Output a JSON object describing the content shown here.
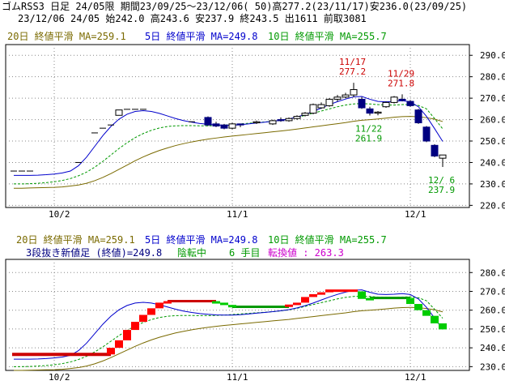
{
  "header": {
    "line1": "ゴムRSS3 日足 24/05限 期間23/09/25〜23/12/06( 50)高277.2(23/11/17)安236.0(23/09/25)",
    "line2": "23/12/06 24/05 始242.0 高243.6 安237.9 終243.5 出1611 前取3081"
  },
  "top_legend": [
    {
      "text": "20日 終値平滑 MA=259.1",
      "color": "#7a6a00"
    },
    {
      "text": "5日 終値平滑 MA=249.8",
      "color": "#0000cc"
    },
    {
      "text": "10日 終値平滑 MA=255.7",
      "color": "#009900"
    }
  ],
  "bottom_legend": [
    {
      "text": "20日 終値平滑 MA=259.1",
      "color": "#7a6a00"
    },
    {
      "text": "5日 終値平滑 MA=249.8",
      "color": "#0000cc"
    },
    {
      "text": "10日 終値平滑 MA=255.7",
      "color": "#009900"
    }
  ],
  "bottom_info": [
    {
      "text": "3段抜き新値足 (終値)=249.8",
      "color": "#000080"
    },
    {
      "text": "陰転中",
      "color": "#009900"
    },
    {
      "text": "6 手目",
      "color": "#009900"
    },
    {
      "text": "転換値 : 263.3",
      "color": "#cc00cc"
    }
  ],
  "chart_data": [
    {
      "type": "candlestick",
      "yticks": [
        220,
        230,
        240,
        250,
        260,
        270,
        280,
        290
      ],
      "ylim": [
        219,
        295
      ],
      "xticks": [
        {
          "label": "10/2",
          "index": 5
        },
        {
          "label": "11/1",
          "index": 27
        },
        {
          "label": "12/1",
          "index": 49
        }
      ],
      "candles": [
        {
          "i": 0,
          "o": 236.0,
          "h": 236.0,
          "l": 236.0,
          "c": 236.0
        },
        {
          "i": 1,
          "o": 236.0,
          "h": 236.0,
          "l": 236.0,
          "c": 236.0
        },
        {
          "i": 2,
          "o": 236.0,
          "h": 236.0,
          "l": 236.0,
          "c": 236.0
        },
        {
          "i": 8,
          "o": 240.0,
          "h": 240.0,
          "l": 240.0,
          "c": 240.0
        },
        {
          "i": 10,
          "o": 253.8,
          "h": 253.8,
          "l": 253.8,
          "c": 253.8
        },
        {
          "i": 11,
          "o": 256.0,
          "h": 256.0,
          "l": 256.0,
          "c": 256.0
        },
        {
          "i": 12,
          "o": 257.5,
          "h": 257.5,
          "l": 257.5,
          "c": 257.5
        },
        {
          "i": 13,
          "o": 262.0,
          "h": 264.5,
          "l": 262.0,
          "c": 264.5
        },
        {
          "i": 14,
          "o": 264.8,
          "h": 264.8,
          "l": 264.8,
          "c": 264.8
        },
        {
          "i": 15,
          "o": 264.8,
          "h": 264.8,
          "l": 264.8,
          "c": 264.8
        },
        {
          "i": 16,
          "o": 264.8,
          "h": 264.8,
          "l": 264.8,
          "c": 264.8
        },
        {
          "i": 22,
          "o": 259.0,
          "h": 259.0,
          "l": 259.0,
          "c": 259.0
        },
        {
          "i": 24,
          "o": 261.0,
          "h": 261.5,
          "l": 257.0,
          "c": 257.5
        },
        {
          "i": 25,
          "o": 258.0,
          "h": 259.0,
          "l": 256.5,
          "c": 257.0
        },
        {
          "i": 26,
          "o": 257.5,
          "h": 258.0,
          "l": 255.5,
          "c": 256.0
        },
        {
          "i": 27,
          "o": 256.0,
          "h": 258.5,
          "l": 255.5,
          "c": 258.0
        },
        {
          "i": 28,
          "o": 258.0,
          "h": 258.0,
          "l": 256.5,
          "c": 257.5
        },
        {
          "i": 30,
          "o": 258.5,
          "h": 259.5,
          "l": 258.0,
          "c": 259.0
        },
        {
          "i": 32,
          "o": 258.0,
          "h": 260.0,
          "l": 257.5,
          "c": 259.5
        },
        {
          "i": 33,
          "o": 260.0,
          "h": 261.0,
          "l": 259.0,
          "c": 259.5
        },
        {
          "i": 34,
          "o": 259.5,
          "h": 261.0,
          "l": 259.0,
          "c": 260.5
        },
        {
          "i": 35,
          "o": 260.5,
          "h": 262.0,
          "l": 260.0,
          "c": 261.5
        },
        {
          "i": 36,
          "o": 262.0,
          "h": 263.5,
          "l": 261.5,
          "c": 263.0
        },
        {
          "i": 37,
          "o": 263.0,
          "h": 267.5,
          "l": 262.5,
          "c": 267.0
        },
        {
          "i": 38,
          "o": 265.5,
          "h": 268.0,
          "l": 265.0,
          "c": 267.0
        },
        {
          "i": 39,
          "o": 266.5,
          "h": 270.0,
          "l": 266.0,
          "c": 269.5
        },
        {
          "i": 40,
          "o": 269.5,
          "h": 271.5,
          "l": 268.5,
          "c": 270.5
        },
        {
          "i": 41,
          "o": 270.5,
          "h": 272.5,
          "l": 270.0,
          "c": 271.5
        },
        {
          "i": 42,
          "o": 271.5,
          "h": 277.2,
          "l": 270.5,
          "c": 274.0
        },
        {
          "i": 43,
          "o": 269.5,
          "h": 270.5,
          "l": 265.0,
          "c": 265.5
        },
        {
          "i": 44,
          "o": 265.0,
          "h": 266.0,
          "l": 261.9,
          "c": 263.0
        },
        {
          "i": 45,
          "o": 263.0,
          "h": 264.0,
          "l": 262.0,
          "c": 263.5
        },
        {
          "i": 46,
          "o": 266.0,
          "h": 268.5,
          "l": 265.5,
          "c": 268.0
        },
        {
          "i": 47,
          "o": 268.0,
          "h": 271.0,
          "l": 267.5,
          "c": 270.5
        },
        {
          "i": 48,
          "o": 269.5,
          "h": 271.8,
          "l": 268.5,
          "c": 269.0
        },
        {
          "i": 49,
          "o": 268.5,
          "h": 269.0,
          "l": 266.0,
          "c": 266.5
        },
        {
          "i": 50,
          "o": 264.5,
          "h": 265.0,
          "l": 258.0,
          "c": 258.5
        },
        {
          "i": 51,
          "o": 256.5,
          "h": 257.0,
          "l": 249.5,
          "c": 250.0
        },
        {
          "i": 52,
          "o": 248.0,
          "h": 248.5,
          "l": 242.5,
          "c": 243.0
        },
        {
          "i": 53,
          "o": 242.0,
          "h": 243.6,
          "l": 237.9,
          "c": 243.5
        }
      ],
      "ma20": [
        228,
        228,
        228.1,
        228.2,
        228.3,
        228.4,
        228.6,
        229,
        229.5,
        230.3,
        231.5,
        233,
        234.8,
        236.8,
        238.8,
        240.8,
        242.6,
        244.2,
        245.6,
        246.8,
        247.9,
        248.8,
        249.6,
        250.3,
        250.9,
        251.4,
        251.9,
        252.3,
        252.7,
        253.1,
        253.5,
        253.9,
        254.3,
        254.7,
        255.1,
        255.6,
        256.1,
        256.6,
        257.1,
        257.6,
        258.1,
        258.6,
        259.2,
        259.7,
        260,
        260.3,
        260.7,
        261.1,
        261.4,
        261.5,
        261.3,
        260.9,
        260.2,
        259.1
      ],
      "ma10": [
        230,
        230,
        230.1,
        230.3,
        230.6,
        231,
        231.6,
        232.5,
        233.8,
        235.5,
        237.8,
        240.5,
        243.5,
        246.5,
        249.2,
        251.6,
        253.5,
        255,
        256.1,
        256.8,
        257.1,
        257.2,
        257.2,
        257.1,
        257.1,
        257.2,
        257.4,
        257.7,
        258,
        258.3,
        258.6,
        258.9,
        259.2,
        259.6,
        260.2,
        261,
        262,
        263,
        264,
        265,
        266,
        266.8,
        267.3,
        267.5,
        267.3,
        267,
        266.8,
        266.8,
        267,
        267.1,
        266.6,
        265,
        260.5,
        255.7
      ],
      "ma5": [
        234,
        234,
        234,
        234.1,
        234.3,
        234.6,
        235.1,
        236,
        238.5,
        242.5,
        247.5,
        252.5,
        256.8,
        260.2,
        262.5,
        263.8,
        264.2,
        263.8,
        262.9,
        261.7,
        260.5,
        259.5,
        258.8,
        258.2,
        257.8,
        257.5,
        257.4,
        257.4,
        257.6,
        258,
        258.4,
        258.8,
        259.2,
        259.7,
        260.3,
        261.2,
        262.4,
        263.8,
        265.4,
        267,
        268.4,
        269.6,
        270.6,
        270.8,
        269.5,
        268.5,
        268.3,
        268.5,
        268.8,
        268.3,
        266,
        261.5,
        255.8,
        249.8
      ],
      "annotations": [
        {
          "i": 42,
          "text_date": "11/17",
          "text_value": "277.2",
          "color": "#cc0000",
          "position": "above"
        },
        {
          "i": 48,
          "text_date": "11/29",
          "text_value": "271.8",
          "color": "#cc0000",
          "position": "above"
        },
        {
          "i": 44,
          "text_date": "11/22",
          "text_value": "261.9",
          "color": "#009900",
          "position": "below"
        },
        {
          "i": 53,
          "text_date": "12/ 6",
          "text_value": "237.9",
          "color": "#009900",
          "position": "below"
        }
      ]
    },
    {
      "type": "three-line-break",
      "basis": "終値",
      "yticks": [
        230,
        240,
        250,
        260,
        270,
        280
      ],
      "ylim": [
        228,
        287
      ],
      "xticks": [
        {
          "label": "10/2",
          "index": 5
        },
        {
          "label": "11/1",
          "index": 27
        },
        {
          "label": "12/1",
          "index": 49
        }
      ],
      "base_line": {
        "from_i": 0,
        "to_i": 12,
        "value": 236.5,
        "color": "#cc0000"
      },
      "bricks": [
        {
          "i": 12,
          "lo": 236.5,
          "hi": 240.0,
          "dir": "up"
        },
        {
          "i": 13,
          "lo": 240.0,
          "hi": 244.0,
          "dir": "up"
        },
        {
          "i": 14,
          "lo": 244.0,
          "hi": 249.5,
          "dir": "up"
        },
        {
          "i": 15,
          "lo": 249.5,
          "hi": 253.8,
          "dir": "up"
        },
        {
          "i": 16,
          "lo": 253.8,
          "hi": 257.5,
          "dir": "up"
        },
        {
          "i": 17,
          "lo": 257.5,
          "hi": 261.0,
          "dir": "up"
        },
        {
          "i": 18,
          "lo": 261.0,
          "hi": 264.0,
          "dir": "up"
        },
        {
          "i": 19,
          "lo": 264.0,
          "hi": 264.8,
          "dir": "up"
        },
        {
          "i": 25,
          "lo": 264.0,
          "hi": 264.8,
          "dir": "down"
        },
        {
          "i": 26,
          "lo": 262.8,
          "hi": 264.0,
          "dir": "down"
        },
        {
          "i": 27,
          "lo": 261.8,
          "hi": 262.8,
          "dir": "down"
        },
        {
          "i": 34,
          "lo": 261.8,
          "hi": 263.0,
          "dir": "up"
        },
        {
          "i": 35,
          "lo": 263.0,
          "hi": 264.0,
          "dir": "up"
        },
        {
          "i": 36,
          "lo": 264.0,
          "hi": 267.0,
          "dir": "up"
        },
        {
          "i": 37,
          "lo": 267.0,
          "hi": 268.5,
          "dir": "up"
        },
        {
          "i": 38,
          "lo": 268.5,
          "hi": 269.5,
          "dir": "up"
        },
        {
          "i": 39,
          "lo": 269.5,
          "hi": 271.0,
          "dir": "up"
        },
        {
          "i": 40,
          "lo": 270.0,
          "hi": 271.0,
          "dir": "up"
        },
        {
          "i": 41,
          "lo": 270.0,
          "hi": 271.0,
          "dir": "up"
        },
        {
          "i": 42,
          "lo": 270.0,
          "hi": 271.0,
          "dir": "up"
        },
        {
          "i": 43,
          "lo": 266.0,
          "hi": 270.0,
          "dir": "down"
        },
        {
          "i": 44,
          "lo": 265.5,
          "hi": 266.5,
          "dir": "down"
        },
        {
          "i": 49,
          "lo": 263.3,
          "hi": 266.5,
          "dir": "down"
        },
        {
          "i": 50,
          "lo": 260.0,
          "hi": 263.3,
          "dir": "down"
        },
        {
          "i": 51,
          "lo": 257.0,
          "hi": 260.0,
          "dir": "down"
        },
        {
          "i": 52,
          "lo": 253.0,
          "hi": 257.0,
          "dir": "down"
        },
        {
          "i": 53,
          "lo": 249.8,
          "hi": 253.0,
          "dir": "down"
        }
      ],
      "flat_lines": [
        {
          "from_i": 19,
          "to_i": 25,
          "value": 264.8,
          "color": "#cc0000"
        },
        {
          "from_i": 27,
          "to_i": 34,
          "value": 261.8,
          "color": "#009900"
        },
        {
          "from_i": 44,
          "to_i": 49,
          "value": 266.5,
          "color": "#009900"
        }
      ]
    }
  ]
}
